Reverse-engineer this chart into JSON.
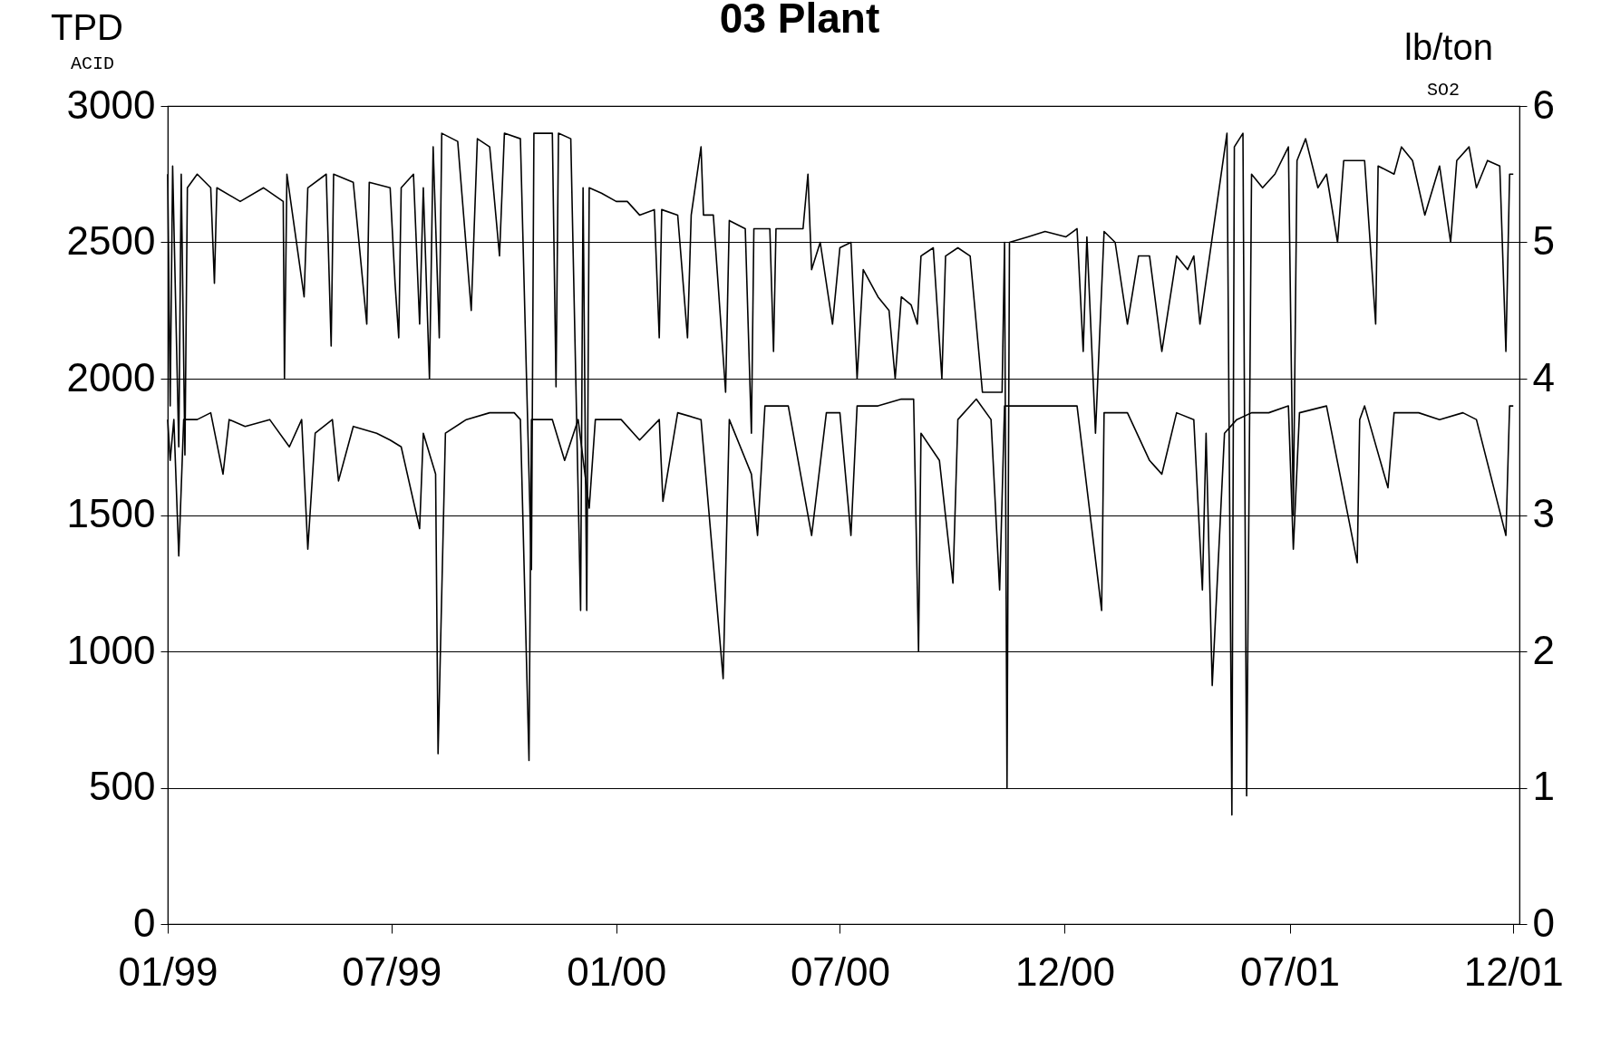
{
  "chart_data": {
    "type": "line",
    "title": "03 Plant",
    "ylabel": "TPD$_{ACID}$",
    "y2label": "lb/ton$_{SO2}$",
    "xlim": [
      "1999-01-01",
      "2002-01-05"
    ],
    "xticks": [
      {
        "value": "1999-01-01",
        "label": "01/99"
      },
      {
        "value": "1999-07-02",
        "label": "07/99"
      },
      {
        "value": "2000-01-01",
        "label": "01/00"
      },
      {
        "value": "2000-07-01",
        "label": "07/00"
      },
      {
        "value": "2000-12-31",
        "label": "12/00"
      },
      {
        "value": "2001-07-02",
        "label": "07/01"
      },
      {
        "value": "2001-12-31",
        "label": "12/01"
      }
    ],
    "ylim": [
      0,
      3000
    ],
    "yticks": [
      0,
      500,
      1000,
      1500,
      2000,
      2500,
      3000
    ],
    "y2lim": [
      0,
      6
    ],
    "y2ticks": [
      0,
      1,
      2,
      3,
      4,
      5,
      6
    ],
    "grid": "y",
    "series": [
      {
        "color": "#000000",
        "axis": "y",
        "x": [
          "1999-01-01",
          "1999-01-03",
          "1999-01-05",
          "1999-01-10",
          "1999-01-12",
          "1999-01-15",
          "1999-01-17",
          "1999-01-25",
          "1999-02-05",
          "1999-02-08",
          "1999-02-10",
          "1999-03-01",
          "1999-03-20",
          "1999-04-05",
          "1999-04-06",
          "1999-04-08",
          "1999-04-22",
          "1999-04-25",
          "1999-05-10",
          "1999-05-14",
          "1999-05-16",
          "1999-06-01",
          "1999-06-12",
          "1999-06-14",
          "1999-07-01",
          "1999-07-05",
          "1999-07-08",
          "1999-07-10",
          "1999-07-20",
          "1999-07-25",
          "1999-07-28",
          "1999-08-02",
          "1999-08-05",
          "1999-08-10",
          "1999-08-12",
          "1999-08-25",
          "1999-09-05",
          "1999-09-10",
          "1999-09-20",
          "1999-09-28",
          "1999-10-02",
          "1999-10-15",
          "1999-10-20",
          "1999-10-24",
          "1999-10-26",
          "1999-11-10",
          "1999-11-13",
          "1999-11-15",
          "1999-11-25",
          "1999-12-03",
          "1999-12-05",
          "1999-12-08",
          "1999-12-10",
          "1999-12-20",
          "2000-01-01",
          "2000-01-10",
          "2000-01-20",
          "2000-02-01",
          "2000-02-05",
          "2000-02-07",
          "2000-02-20",
          "2000-02-28",
          "2000-03-02",
          "2000-03-10",
          "2000-03-12",
          "2000-03-20",
          "2000-03-30",
          "2000-04-02",
          "2000-04-15",
          "2000-04-20",
          "2000-04-22",
          "2000-05-05",
          "2000-05-08",
          "2000-05-10",
          "2000-05-25",
          "2000-06-01",
          "2000-06-05",
          "2000-06-08",
          "2000-06-15",
          "2000-06-25",
          "2000-07-01",
          "2000-07-10",
          "2000-07-15",
          "2000-07-20",
          "2000-08-01",
          "2000-08-10",
          "2000-08-15",
          "2000-08-20",
          "2000-08-28",
          "2000-09-02",
          "2000-09-05",
          "2000-09-15",
          "2000-09-22",
          "2000-09-25",
          "2000-10-05",
          "2000-10-15",
          "2000-10-25",
          "2000-11-01",
          "2000-11-10",
          "2000-11-12",
          "2000-11-14",
          "2000-11-16",
          "2000-12-01",
          "2000-12-15",
          "2001-01-01",
          "2001-01-10",
          "2001-01-15",
          "2001-01-18",
          "2001-01-25",
          "2001-02-01",
          "2001-02-10",
          "2001-02-20",
          "2001-03-01",
          "2001-03-10",
          "2001-03-20",
          "2001-04-01",
          "2001-04-10",
          "2001-04-15",
          "2001-04-20",
          "2001-05-12",
          "2001-05-16",
          "2001-05-18",
          "2001-05-25",
          "2001-05-28",
          "2001-06-01",
          "2001-06-10",
          "2001-06-20",
          "2001-07-01",
          "2001-07-05",
          "2001-07-08",
          "2001-07-15",
          "2001-07-25",
          "2001-08-01",
          "2001-08-10",
          "2001-08-15",
          "2001-09-01",
          "2001-09-10",
          "2001-09-12",
          "2001-09-25",
          "2001-10-01",
          "2001-10-10",
          "2001-10-20",
          "2001-11-01",
          "2001-11-10",
          "2001-11-15",
          "2001-11-25",
          "2001-12-01",
          "2001-12-10",
          "2001-12-20",
          "2001-12-25",
          "2001-12-28",
          "2001-12-31"
        ],
        "values": [
          2750,
          1900,
          2780,
          1750,
          2750,
          1720,
          2700,
          2750,
          2700,
          2350,
          2700,
          2650,
          2700,
          2650,
          2000,
          2750,
          2300,
          2700,
          2750,
          2120,
          2750,
          2720,
          2200,
          2720,
          2700,
          2350,
          2150,
          2700,
          2750,
          2200,
          2700,
          2000,
          2850,
          2150,
          2900,
          2870,
          2250,
          2880,
          2850,
          2450,
          2900,
          2880,
          2000,
          1300,
          2900,
          2900,
          1970,
          2900,
          2880,
          1150,
          2700,
          1150,
          2700,
          2680,
          2650,
          2650,
          2600,
          2620,
          2150,
          2620,
          2600,
          2150,
          2600,
          2850,
          2600,
          2600,
          1950,
          2580,
          2550,
          1800,
          2550,
          2550,
          2100,
          2550,
          2550,
          2550,
          2750,
          2400,
          2500,
          2200,
          2480,
          2500,
          2000,
          2400,
          2300,
          2250,
          2000,
          2300,
          2270,
          2200,
          2450,
          2480,
          2000,
          2450,
          2480,
          2450,
          1950,
          1950,
          1950,
          2500,
          500,
          2500,
          2520,
          2540,
          2520,
          2550,
          2100,
          2520,
          1800,
          2540,
          2500,
          2200,
          2450,
          2450,
          2100,
          2450,
          2400,
          2450,
          2200,
          2900,
          400,
          2850,
          2900,
          470,
          2750,
          2700,
          2750,
          2850,
          1500,
          2800,
          2880,
          2700,
          2750,
          2500,
          2800,
          2800,
          2200,
          2780,
          2750,
          2850,
          2800,
          2600,
          2780,
          2500,
          2800,
          2850,
          2700,
          2800,
          2780,
          2100,
          2750,
          2750
        ]
      },
      {
        "color": "#000000",
        "axis": "y2",
        "x": [
          "1999-01-01",
          "1999-01-03",
          "1999-01-06",
          "1999-01-10",
          "1999-01-14",
          "1999-01-25",
          "1999-02-05",
          "1999-02-15",
          "1999-02-20",
          "1999-03-05",
          "1999-03-25",
          "1999-04-10",
          "1999-04-20",
          "1999-04-25",
          "1999-05-01",
          "1999-05-15",
          "1999-05-20",
          "1999-06-01",
          "1999-06-20",
          "1999-07-01",
          "1999-07-10",
          "1999-07-25",
          "1999-07-28",
          "1999-08-07",
          "1999-08-09",
          "1999-08-15",
          "1999-09-01",
          "1999-09-20",
          "1999-10-10",
          "1999-10-15",
          "1999-10-22",
          "1999-10-24",
          "1999-11-10",
          "1999-11-20",
          "1999-12-01",
          "1999-12-10",
          "1999-12-15",
          "2000-01-05",
          "2000-01-20",
          "2000-02-05",
          "2000-02-08",
          "2000-02-20",
          "2000-03-10",
          "2000-03-28",
          "2000-04-02",
          "2000-04-20",
          "2000-04-25",
          "2000-05-01",
          "2000-05-20",
          "2000-06-08",
          "2000-06-20",
          "2000-07-01",
          "2000-07-10",
          "2000-07-15",
          "2000-08-01",
          "2000-08-20",
          "2000-08-30",
          "2000-09-03",
          "2000-09-05",
          "2000-09-20",
          "2000-10-01",
          "2000-10-05",
          "2000-10-20",
          "2000-11-01",
          "2000-11-08",
          "2000-11-12",
          "2000-12-01",
          "2000-12-20",
          "2001-01-10",
          "2001-01-30",
          "2001-02-01",
          "2001-02-20",
          "2001-03-10",
          "2001-03-20",
          "2001-04-01",
          "2001-04-15",
          "2001-04-22",
          "2001-04-25",
          "2001-04-30",
          "2001-05-10",
          "2001-05-20",
          "2001-06-01",
          "2001-06-15",
          "2001-07-01",
          "2001-07-05",
          "2001-07-10",
          "2001-08-01",
          "2001-08-26",
          "2001-08-28",
          "2001-09-01",
          "2001-09-20",
          "2001-09-25",
          "2001-10-15",
          "2001-11-01",
          "2001-11-20",
          "2001-12-01",
          "2001-12-25",
          "2001-12-28",
          "2001-12-31"
        ],
        "values": [
          3.7,
          3.4,
          3.7,
          2.7,
          3.7,
          3.7,
          3.75,
          3.3,
          3.7,
          3.65,
          3.7,
          3.5,
          3.7,
          2.75,
          3.6,
          3.7,
          3.25,
          3.65,
          3.6,
          3.55,
          3.5,
          2.9,
          3.6,
          3.3,
          1.25,
          3.6,
          3.7,
          3.75,
          3.75,
          3.7,
          1.2,
          3.7,
          3.7,
          3.4,
          3.7,
          3.05,
          3.7,
          3.7,
          3.55,
          3.7,
          3.1,
          3.75,
          3.7,
          1.8,
          3.7,
          3.3,
          2.85,
          3.8,
          3.8,
          2.85,
          3.75,
          3.75,
          2.85,
          3.8,
          3.8,
          3.85,
          3.85,
          2.0,
          3.6,
          3.4,
          2.5,
          3.7,
          3.85,
          3.7,
          2.45,
          3.8,
          3.8,
          3.8,
          3.8,
          2.3,
          3.75,
          3.75,
          3.4,
          3.3,
          3.75,
          3.7,
          2.45,
          3.6,
          1.75,
          3.6,
          3.7,
          3.75,
          3.75,
          3.8,
          2.75,
          3.75,
          3.8,
          2.65,
          3.7,
          3.8,
          3.2,
          3.75,
          3.75,
          3.7,
          3.75,
          3.7,
          2.85,
          3.8,
          3.8
        ]
      }
    ]
  }
}
